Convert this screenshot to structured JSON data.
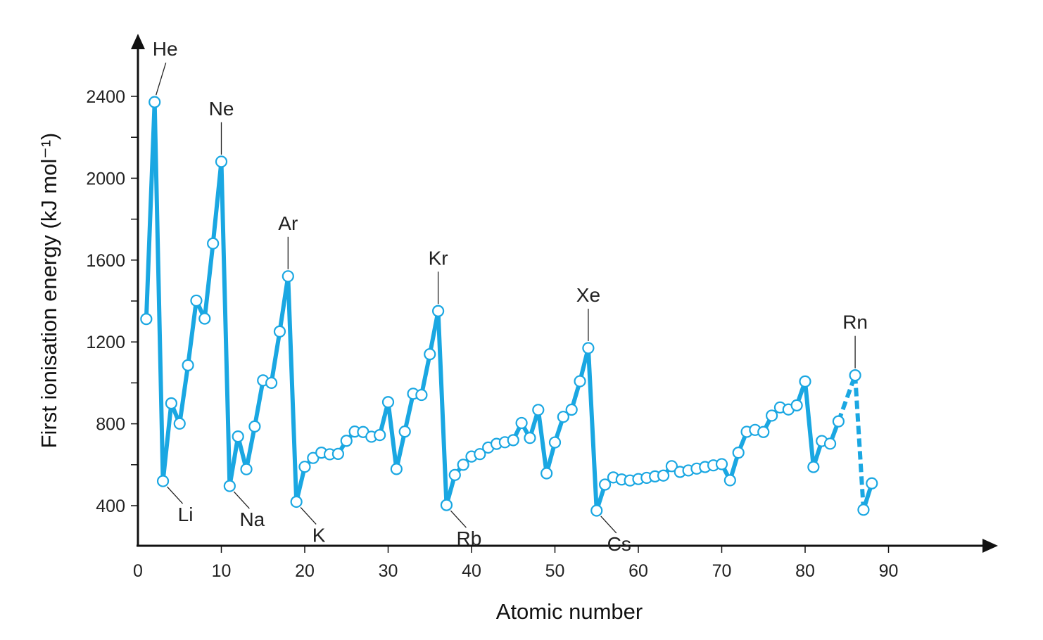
{
  "chart_data": {
    "type": "line",
    "title": "",
    "xlabel": "Atomic number",
    "ylabel": "First ionisation energy (kJ mol⁻¹)",
    "xlim": [
      0,
      90
    ],
    "ylim": [
      240,
      2700
    ],
    "x_ticks": [
      0,
      10,
      20,
      30,
      40,
      50,
      60,
      70,
      80,
      90
    ],
    "y_ticks": [
      400,
      800,
      1200,
      1600,
      2000,
      2400
    ],
    "y_minor_ticks": [
      600,
      1000,
      1400,
      1800,
      2200
    ],
    "grid": false,
    "line_color": "#1aa7e2",
    "marker_fill": "#ffffff",
    "series": [
      {
        "x": [
          1,
          2,
          3,
          4,
          5,
          6,
          7,
          8,
          9,
          10,
          11,
          12,
          13,
          14,
          15,
          16,
          17,
          18,
          19,
          20,
          21,
          22,
          23,
          24,
          25,
          26,
          27,
          28,
          29,
          30,
          31,
          32,
          33,
          34,
          35,
          36,
          37,
          38,
          39,
          40,
          41,
          42,
          43,
          44,
          45,
          46,
          47,
          48,
          49,
          50,
          51,
          52,
          53,
          54,
          55,
          56,
          57,
          58,
          59,
          60,
          61,
          62,
          63,
          64,
          65,
          66,
          67,
          68,
          69,
          70,
          71,
          72,
          73,
          74,
          75,
          76,
          77,
          78,
          79,
          80,
          81,
          82,
          83,
          84,
          86,
          87,
          88
        ],
        "values": [
          1312,
          2372,
          520,
          900,
          801,
          1086,
          1402,
          1314,
          1681,
          2081,
          496,
          738,
          578,
          787,
          1012,
          1000,
          1251,
          1521,
          419,
          590,
          633,
          659,
          651,
          653,
          717,
          762,
          760,
          737,
          745,
          906,
          579,
          762,
          947,
          941,
          1140,
          1351,
          403,
          550,
          600,
          640,
          652,
          684,
          702,
          710,
          720,
          804,
          731,
          868,
          558,
          709,
          834,
          869,
          1008,
          1170,
          376,
          503,
          538,
          528,
          523,
          530,
          536,
          543,
          547,
          593,
          565,
          572,
          581,
          589,
          597,
          603,
          524,
          659,
          761,
          770,
          760,
          840,
          880,
          870,
          890,
          1007,
          589,
          716,
          703,
          812,
          1037,
          380,
          509
        ]
      }
    ],
    "dashed_segments": [
      [
        84,
        86
      ],
      [
        86,
        87
      ]
    ],
    "annotations": [
      {
        "text": "He",
        "x": 2
      },
      {
        "text": "Ne",
        "x": 10
      },
      {
        "text": "Ar",
        "x": 18
      },
      {
        "text": "Kr",
        "x": 36
      },
      {
        "text": "Xe",
        "x": 54
      },
      {
        "text": "Rn",
        "x": 86
      },
      {
        "text": "Li",
        "x": 3
      },
      {
        "text": "Na",
        "x": 11
      },
      {
        "text": "K",
        "x": 19
      },
      {
        "text": "Rb",
        "x": 37
      },
      {
        "text": "Cs",
        "x": 55
      }
    ]
  }
}
